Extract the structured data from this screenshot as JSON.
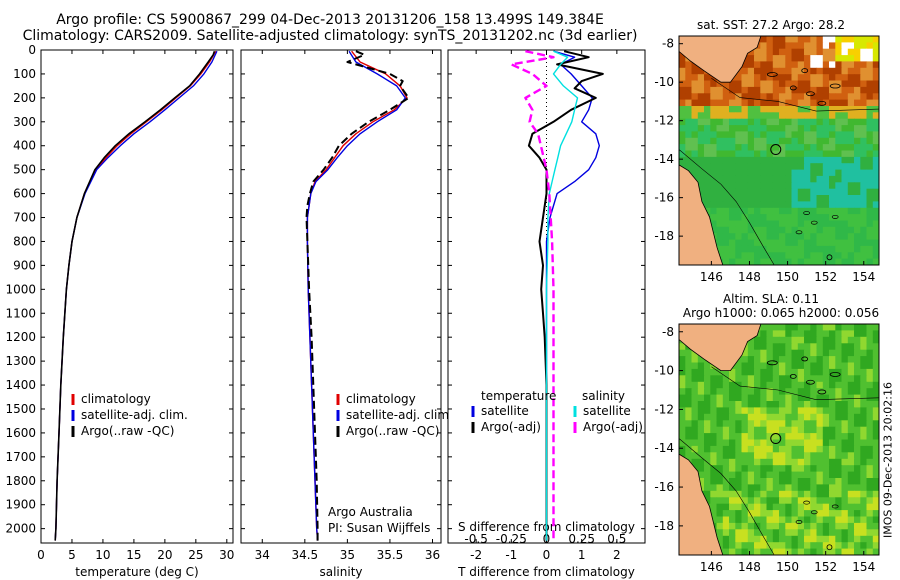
{
  "header": {
    "title_line1": "Argo profile: CS 5900867_299 04-Dec-2013 20131206_158 13.499S 149.384E",
    "title_line2": "Climatology: CARS2009. Satellite-adjusted climatology: synTS_20131202.nc (3d earlier)"
  },
  "footer": {
    "side_label": "IMOS 09-Dec-2013 20:02:16"
  },
  "colors": {
    "climatology": "#e00000",
    "satellite": "#0000e0",
    "argo": "#000000",
    "sat_salinity": "#00e0e0",
    "argo_salinity": "#ff00ff",
    "land": "#f0b080"
  },
  "chart_data": [
    {
      "type": "line",
      "name": "temperature",
      "xlabel": "temperature (deg C)",
      "xlim": [
        0,
        31
      ],
      "ylim": [
        2060,
        0
      ],
      "xticks": [
        "0",
        "5",
        "10",
        "15",
        "20",
        "25",
        "30"
      ],
      "yticks": [
        "0",
        "100",
        "200",
        "300",
        "400",
        "500",
        "600",
        "700",
        "800",
        "900",
        "1000",
        "1100",
        "1200",
        "1300",
        "1400",
        "1500",
        "1600",
        "1700",
        "1800",
        "1900",
        "2000"
      ],
      "legend": [
        "climatology",
        "satellite-adj. clim.",
        "Argo(..raw -QC)"
      ],
      "series": [
        {
          "name": "climatology",
          "depth": [
            5,
            50,
            100,
            150,
            200,
            250,
            300,
            350,
            400,
            450,
            500,
            600,
            700,
            800,
            900,
            1000,
            1200,
            1400,
            1600,
            1800,
            2000,
            2050
          ],
          "values": [
            28.2,
            27.2,
            25.8,
            24.1,
            21.8,
            19.5,
            17.0,
            14.5,
            12.3,
            10.5,
            8.8,
            7.0,
            5.8,
            5.0,
            4.5,
            4.1,
            3.6,
            3.2,
            2.9,
            2.6,
            2.4,
            2.3
          ]
        },
        {
          "name": "satellite-adj. clim.",
          "depth": [
            5,
            50,
            100,
            150,
            200,
            250,
            300,
            350,
            400,
            450,
            500,
            600,
            700,
            800,
            900,
            1000,
            1200,
            1400,
            1600,
            1800,
            2000,
            2050
          ],
          "values": [
            28.4,
            27.6,
            26.3,
            24.6,
            22.3,
            20.0,
            17.6,
            15.0,
            12.8,
            10.8,
            9.0,
            7.1,
            5.8,
            5.0,
            4.5,
            4.1,
            3.6,
            3.2,
            2.9,
            2.6,
            2.4,
            2.3
          ]
        },
        {
          "name": "Argo(..raw -QC)",
          "depth": [
            5,
            20,
            50,
            100,
            150,
            200,
            250,
            300,
            350,
            400,
            450,
            500,
            600,
            700,
            800,
            900,
            1000,
            1200,
            1400,
            1600,
            1800,
            2000,
            2050
          ],
          "values": [
            28.0,
            27.8,
            27.0,
            25.6,
            24.0,
            21.6,
            19.3,
            16.8,
            14.2,
            12.0,
            10.2,
            8.7,
            7.0,
            5.8,
            5.0,
            4.5,
            4.1,
            3.6,
            3.2,
            2.9,
            2.6,
            2.4,
            2.3
          ]
        }
      ]
    },
    {
      "type": "line",
      "name": "salinity",
      "xlabel": "salinity",
      "xlim": [
        33.75,
        36.1
      ],
      "ylim": [
        2060,
        0
      ],
      "xticks": [
        "34",
        "34.5",
        "35",
        "35.5",
        "36"
      ],
      "legend": [
        "climatology",
        "satellite-adj. clim.",
        "Argo(..raw -QC)"
      ],
      "annotation": [
        "Argo Australia",
        "PI: Susan Wijffels"
      ],
      "series": [
        {
          "name": "climatology",
          "depth": [
            5,
            50,
            100,
            150,
            200,
            250,
            300,
            350,
            400,
            450,
            500,
            550,
            600,
            650,
            700,
            800,
            1000,
            1200,
            1400,
            1600,
            1800,
            2000,
            2050
          ],
          "values": [
            35.05,
            35.15,
            35.45,
            35.62,
            35.7,
            35.55,
            35.3,
            35.1,
            34.95,
            34.85,
            34.75,
            34.62,
            34.57,
            34.55,
            34.53,
            34.53,
            34.54,
            34.56,
            34.58,
            34.6,
            34.62,
            34.64,
            34.65
          ]
        },
        {
          "name": "satellite-adj. clim.",
          "depth": [
            5,
            50,
            100,
            150,
            200,
            250,
            300,
            350,
            400,
            450,
            500,
            550,
            600,
            650,
            700,
            800,
            1000,
            1200,
            1400,
            1600,
            1800,
            2000,
            2050
          ],
          "values": [
            35.02,
            35.1,
            35.35,
            35.58,
            35.68,
            35.58,
            35.35,
            35.15,
            35.0,
            34.88,
            34.77,
            34.63,
            34.57,
            34.55,
            34.53,
            34.53,
            34.54,
            34.56,
            34.58,
            34.6,
            34.62,
            34.64,
            34.65
          ]
        },
        {
          "name": "Argo(..raw -QC)",
          "depth": [
            5,
            20,
            50,
            80,
            100,
            130,
            150,
            200,
            250,
            300,
            350,
            400,
            450,
            500,
            550,
            600,
            650,
            700,
            800,
            1000,
            1200,
            1400,
            1600,
            1800,
            2000,
            2050
          ],
          "values": [
            35.1,
            35.2,
            35.0,
            35.3,
            35.5,
            35.65,
            35.62,
            35.72,
            35.5,
            35.25,
            35.05,
            34.9,
            34.82,
            34.72,
            34.6,
            34.56,
            34.53,
            34.52,
            34.53,
            34.55,
            34.58,
            34.6,
            34.62,
            34.64,
            34.65,
            34.65
          ]
        }
      ]
    },
    {
      "type": "line",
      "name": "differences",
      "xlabel": "T difference from climatology",
      "xlabel2": "S difference from climatology",
      "xlim": [
        -2.8,
        2.8
      ],
      "ylim": [
        2060,
        0
      ],
      "xticks": [
        "-2",
        "-1",
        "0",
        "1",
        "2"
      ],
      "sticks": [
        "-0.5",
        "-0.25",
        "0",
        "0.25",
        "0.5"
      ],
      "legend_headers": [
        "temperature",
        "salinity"
      ],
      "legend": [
        "satellite",
        "Argo(-adj)",
        "satellite",
        "Argo(-adj)"
      ],
      "series": [
        {
          "name": "satellite",
          "depth": [
            5,
            30,
            60,
            100,
            150,
            200,
            250,
            300,
            350,
            400,
            450,
            500,
            550,
            600,
            700,
            800,
            900,
            1000,
            1200,
            1400,
            1600,
            1800,
            2000,
            2050
          ],
          "values": [
            0.2,
            0.8,
            0.4,
            0.7,
            1.0,
            1.3,
            1.2,
            1.0,
            1.4,
            1.5,
            1.4,
            1.2,
            0.8,
            0.3,
            0.1,
            0.0,
            0.0,
            0.0,
            0.0,
            0.0,
            0.0,
            0.0,
            0.0,
            0.0
          ]
        },
        {
          "name": "Argo(-adj)",
          "depth": [
            5,
            30,
            60,
            100,
            130,
            160,
            200,
            250,
            300,
            350,
            400,
            450,
            500,
            600,
            700,
            800,
            900,
            1000,
            1100,
            1200,
            1400,
            1600,
            1800,
            2000,
            2050
          ],
          "values": [
            0.5,
            1.2,
            0.3,
            1.6,
            1.0,
            0.8,
            1.4,
            0.7,
            0.2,
            -0.4,
            -0.5,
            -0.2,
            0.0,
            0.0,
            -0.1,
            -0.2,
            -0.1,
            -0.15,
            -0.1,
            -0.05,
            0.0,
            0.0,
            0.0,
            0.0,
            0.0
          ]
        },
        {
          "name": "satellite",
          "depth": [
            5,
            30,
            60,
            100,
            150,
            200,
            250,
            300,
            350,
            400,
            450,
            500,
            550,
            600,
            700,
            800,
            1000,
            1200,
            1400,
            1600,
            1800,
            2000,
            2050
          ],
          "values": [
            0.05,
            0.15,
            0.1,
            0.05,
            0.12,
            0.22,
            0.2,
            0.18,
            0.14,
            0.1,
            0.08,
            0.06,
            0.04,
            0.02,
            0.01,
            0.01,
            0.0,
            0.0,
            0.0,
            0.0,
            0.0,
            0.0,
            0.0
          ]
        },
        {
          "name": "Argo(-adj)",
          "depth": [
            5,
            30,
            60,
            100,
            150,
            200,
            250,
            300,
            350,
            400,
            450,
            500,
            600,
            700,
            800,
            1000,
            1200,
            1400,
            1600,
            1800,
            2000,
            2050
          ],
          "values": [
            -0.15,
            0.05,
            -0.25,
            -0.1,
            0.0,
            -0.15,
            -0.1,
            -0.12,
            -0.06,
            -0.04,
            -0.02,
            0.0,
            0.02,
            0.03,
            0.04,
            0.05,
            0.05,
            0.05,
            0.05,
            0.05,
            0.05,
            0.05
          ]
        }
      ]
    },
    {
      "type": "heatmap",
      "name": "sst map",
      "title": "sat. SST: 27.2  Argo: 28.2",
      "xticks": [
        "146",
        "148",
        "150",
        "152",
        "154"
      ],
      "yticks": [
        "-8",
        "-10",
        "-12",
        "-14",
        "-16",
        "-18"
      ],
      "xlim": [
        144.3,
        154.8
      ],
      "ylim": [
        -19.5,
        -7.6
      ],
      "marker": {
        "lon": 149.38,
        "lat": -13.5
      }
    },
    {
      "type": "heatmap",
      "name": "sla map",
      "title": "Altim. SLA: 0.11",
      "subtitle": "Argo h1000: 0.065 h2000: 0.056",
      "xticks": [
        "146",
        "148",
        "150",
        "152",
        "154"
      ],
      "yticks": [
        "-8",
        "-10",
        "-12",
        "-14",
        "-16",
        "-18"
      ],
      "xlim": [
        144.3,
        154.8
      ],
      "ylim": [
        -19.5,
        -7.6
      ],
      "marker": {
        "lon": 149.38,
        "lat": -13.5
      }
    }
  ]
}
